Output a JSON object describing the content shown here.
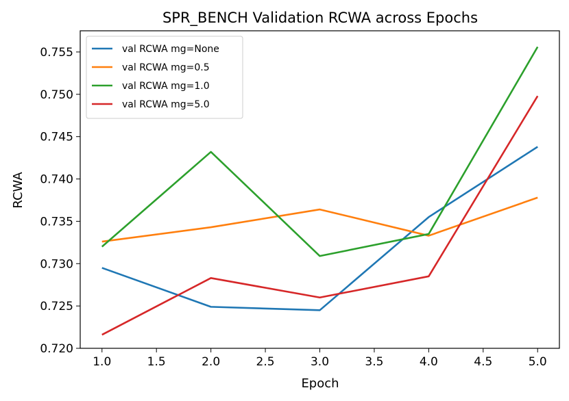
{
  "chart_data": {
    "type": "line",
    "title": "SPR_BENCH Validation RCWA across Epochs",
    "xlabel": "Epoch",
    "ylabel": "RCWA",
    "x": [
      1,
      2,
      3,
      4,
      5
    ],
    "xlim": [
      0.8,
      5.2
    ],
    "ylim": [
      0.72,
      0.7575
    ],
    "xticks": [
      1.0,
      1.5,
      2.0,
      2.5,
      3.0,
      3.5,
      4.0,
      4.5,
      5.0
    ],
    "yticks": [
      0.72,
      0.725,
      0.73,
      0.735,
      0.74,
      0.745,
      0.75,
      0.755
    ],
    "xtick_labels": [
      "1.0",
      "1.5",
      "2.0",
      "2.5",
      "3.0",
      "3.5",
      "4.0",
      "4.5",
      "5.0"
    ],
    "ytick_labels": [
      "0.720",
      "0.725",
      "0.730",
      "0.735",
      "0.740",
      "0.745",
      "0.750",
      "0.755"
    ],
    "grid": false,
    "legend_position": "top-left",
    "series": [
      {
        "name": "val RCWA mg=None",
        "color": "#1f77b4",
        "values": [
          0.7295,
          0.7249,
          0.7245,
          0.7355,
          0.7438
        ]
      },
      {
        "name": "val RCWA mg=0.5",
        "color": "#ff7f0e",
        "values": [
          0.7326,
          0.7343,
          0.7364,
          0.7333,
          0.7378
        ]
      },
      {
        "name": "val RCWA mg=1.0",
        "color": "#2ca02c",
        "values": [
          0.732,
          0.7432,
          0.7309,
          0.7335,
          0.7556
        ]
      },
      {
        "name": "val RCWA mg=5.0",
        "color": "#d62728",
        "values": [
          0.7216,
          0.7283,
          0.726,
          0.7285,
          0.7498
        ]
      }
    ]
  }
}
